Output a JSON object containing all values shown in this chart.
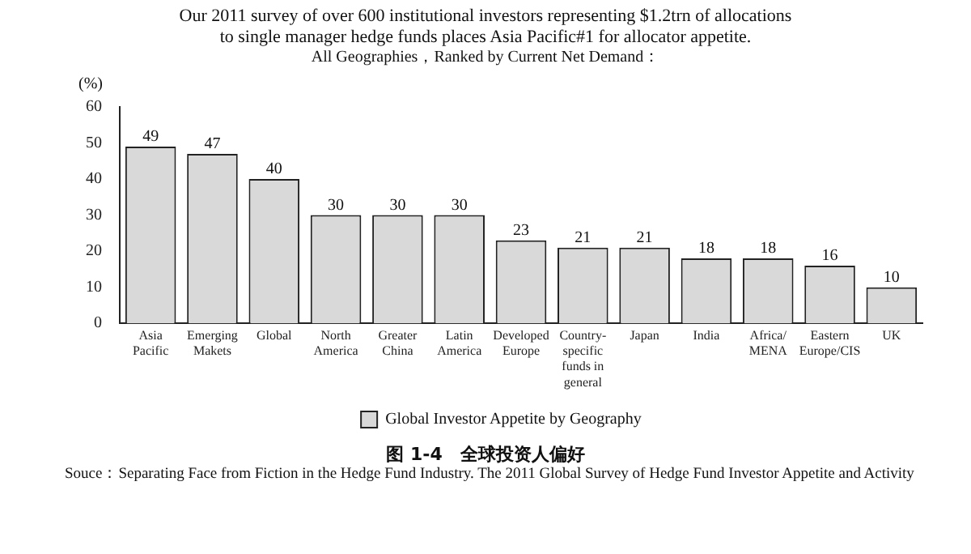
{
  "chart_data": {
    "type": "bar",
    "title": "Our 2011 survey of over 600 institutional investors representing $1.2trn of allocations to single manager hedge funds places Asia Pacific#1 for allocator appetite.",
    "subtitle": "All Geographies，Ranked by Current Net Demand：",
    "ylabel": "(%)",
    "categories": [
      "Asia Pacific",
      "Emerging Makets",
      "Global",
      "North America",
      "Greater China",
      "Latin America",
      "Developed Europe",
      "Country-specific funds in general",
      "Japan",
      "India",
      "Africa/ MENA",
      "Eastern Europe/CIS",
      "UK"
    ],
    "series": [
      {
        "name": "Global Investor Appetite by Geography",
        "color": "#d9d9d9",
        "values": [
          49,
          47,
          40,
          30,
          30,
          30,
          23,
          21,
          21,
          18,
          18,
          16,
          10
        ]
      }
    ],
    "ylim": [
      0,
      60
    ],
    "yticks": [
      0,
      10,
      20,
      30,
      40,
      50,
      60
    ],
    "grid": false,
    "legend": "bottom",
    "data_labels": true,
    "annotations": [
      "图 1-4　全球投资人偏好",
      "Souce：Separating Face from Fiction in the Hedge Fund Industry. The 2011 Global Survey of Hedge Fund Investor Appetite and Activity"
    ]
  }
}
